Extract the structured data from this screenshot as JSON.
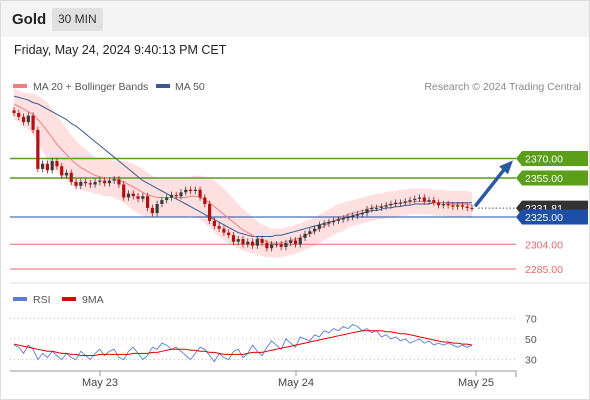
{
  "header": {
    "title": "Gold",
    "timeframe": "30 MIN",
    "datetime": "Friday, May 24, 2024 9:40:13 PM CET"
  },
  "legend": {
    "main": [
      {
        "label": "MA 20 + Bollinger Bands",
        "color": "#f08080"
      },
      {
        "label": "MA 50",
        "color": "#3a5a90"
      }
    ],
    "credit": "Research © 2024 Trading Central",
    "rsi": [
      {
        "label": "RSI",
        "color": "#5b7fd4"
      },
      {
        "label": "9MA",
        "color": "#e00000"
      }
    ]
  },
  "colors": {
    "resistance": "#5a9e1a",
    "support": "#e46a6a",
    "pivot": "#1e4fa8",
    "current": "#333333",
    "arrow": "#2a5aa0",
    "candle_up": "#3a3a3a",
    "candle_down": "#b01010"
  },
  "chart_data": {
    "type": "candlestick",
    "x_ticks": [
      "May 23",
      "May 24",
      "May 25"
    ],
    "y_range": [
      2275,
      2415
    ],
    "levels": [
      {
        "label": "2370.00",
        "value": 2370,
        "kind": "resistance"
      },
      {
        "label": "2355.00",
        "value": 2355,
        "kind": "resistance"
      },
      {
        "label": "2331.81",
        "value": 2331.81,
        "kind": "current"
      },
      {
        "label": "2325.00",
        "value": 2325,
        "kind": "pivot"
      },
      {
        "label": "2304.00",
        "value": 2304,
        "kind": "support"
      },
      {
        "label": "2285.00",
        "value": 2285,
        "kind": "support"
      }
    ],
    "closes": [
      2405,
      2402,
      2398,
      2403,
      2392,
      2362,
      2366,
      2361,
      2368,
      2364,
      2357,
      2359,
      2352,
      2349,
      2352,
      2351,
      2350,
      2352,
      2353,
      2351,
      2353,
      2354,
      2350,
      2340,
      2343,
      2341,
      2339,
      2341,
      2332,
      2328,
      2335,
      2338,
      2340,
      2342,
      2341,
      2344,
      2346,
      2345,
      2346,
      2340,
      2335,
      2322,
      2318,
      2316,
      2313,
      2311,
      2306,
      2308,
      2304,
      2306,
      2303,
      2308,
      2305,
      2301,
      2304,
      2304,
      2302,
      2305,
      2307,
      2304,
      2309,
      2312,
      2314,
      2316,
      2319,
      2320,
      2321,
      2322,
      2323,
      2324,
      2325,
      2326,
      2327,
      2328,
      2331,
      2332,
      2332,
      2333,
      2334,
      2335,
      2336,
      2336,
      2337,
      2338,
      2339,
      2340,
      2337,
      2338,
      2336,
      2334,
      2335,
      2334,
      2333,
      2334,
      2333,
      2332,
      2331.81
    ],
    "ma20": [
      2412,
      2410,
      2408,
      2406,
      2404,
      2400,
      2396,
      2391,
      2386,
      2381,
      2377,
      2373,
      2369,
      2366,
      2363,
      2361,
      2359,
      2357,
      2356,
      2355,
      2355,
      2354,
      2353,
      2352,
      2350,
      2348,
      2346,
      2344,
      2342,
      2341,
      2340,
      2340,
      2340,
      2340,
      2340,
      2340,
      2340,
      2341,
      2341,
      2340,
      2338,
      2336,
      2333,
      2330,
      2327,
      2324,
      2321,
      2318,
      2315,
      2313,
      2311,
      2309,
      2307,
      2306,
      2305,
      2305,
      2305,
      2306,
      2307,
      2308,
      2309,
      2311,
      2312,
      2314,
      2316,
      2318,
      2320,
      2322,
      2324,
      2325,
      2327,
      2328,
      2329,
      2330,
      2331,
      2332,
      2333,
      2333,
      2334,
      2335,
      2335,
      2336,
      2336,
      2337,
      2337,
      2337,
      2337,
      2337,
      2336,
      2336,
      2336,
      2335,
      2335,
      2335,
      2335,
      2335,
      2334
    ],
    "ma50": [
      2418,
      2417,
      2416,
      2415,
      2413,
      2412,
      2410,
      2408,
      2406,
      2404,
      2402,
      2400,
      2397,
      2395,
      2392,
      2389,
      2386,
      2383,
      2380,
      2377,
      2374,
      2371,
      2368,
      2365,
      2362,
      2359,
      2356,
      2353,
      2351,
      2349,
      2347,
      2345,
      2343,
      2341,
      2339,
      2337,
      2335,
      2333,
      2331,
      2329,
      2327,
      2325,
      2323,
      2321,
      2319,
      2317,
      2315,
      2313,
      2312,
      2311,
      2310,
      2310,
      2310,
      2310,
      2310,
      2311,
      2311,
      2312,
      2313,
      2314,
      2315,
      2316,
      2317,
      2318,
      2319,
      2320,
      2321,
      2322,
      2323,
      2324,
      2325,
      2326,
      2327,
      2328,
      2329,
      2330,
      2330,
      2331,
      2332,
      2332,
      2333,
      2333,
      2334,
      2334,
      2335,
      2335,
      2335,
      2335,
      2336,
      2336,
      2336,
      2336,
      2336,
      2336,
      2336,
      2336,
      2336
    ],
    "bb_width": [
      12,
      12,
      13,
      14,
      16,
      18,
      20,
      22,
      22,
      22,
      21,
      20,
      19,
      18,
      17,
      16,
      15,
      14,
      14,
      14,
      14,
      14,
      15,
      16,
      17,
      18,
      18,
      18,
      17,
      16,
      15,
      15,
      15,
      15,
      15,
      15,
      15,
      15,
      16,
      17,
      18,
      19,
      20,
      20,
      20,
      19,
      18,
      17,
      16,
      15,
      14,
      13,
      12,
      12,
      11,
      11,
      11,
      11,
      11,
      11,
      11,
      11,
      11,
      11,
      11,
      11,
      11,
      11,
      11,
      11,
      10,
      10,
      10,
      10,
      10,
      10,
      10,
      10,
      10,
      10,
      10,
      10,
      10,
      10,
      10,
      10,
      10,
      10,
      10,
      10,
      10,
      10,
      10,
      10,
      10,
      10,
      10
    ],
    "rsi": {
      "levels": [
        70,
        50,
        30
      ],
      "y_range": [
        18,
        78
      ],
      "rsi": [
        44,
        42,
        36,
        44,
        40,
        30,
        36,
        32,
        38,
        34,
        30,
        36,
        32,
        30,
        38,
        34,
        30,
        36,
        40,
        34,
        38,
        40,
        32,
        30,
        38,
        42,
        36,
        30,
        34,
        42,
        40,
        46,
        44,
        40,
        42,
        38,
        34,
        30,
        36,
        42,
        40,
        34,
        28,
        36,
        32,
        30,
        38,
        40,
        32,
        36,
        44,
        38,
        34,
        42,
        48,
        44,
        40,
        50,
        46,
        42,
        52,
        50,
        48,
        54,
        52,
        58,
        56,
        60,
        58,
        62,
        60,
        64,
        62,
        58,
        60,
        56,
        58,
        52,
        54,
        50,
        52,
        48,
        50,
        46,
        48,
        50,
        46,
        48,
        44,
        46,
        44,
        46,
        44,
        42,
        44,
        42,
        44
      ],
      "ma9": [
        45,
        44,
        43,
        42,
        41,
        40,
        39,
        38,
        38,
        37,
        36,
        36,
        35,
        35,
        34,
        34,
        34,
        34,
        35,
        35,
        35,
        35,
        35,
        35,
        35,
        36,
        36,
        36,
        36,
        37,
        37,
        38,
        39,
        40,
        40,
        40,
        40,
        39,
        39,
        38,
        38,
        37,
        37,
        36,
        35,
        35,
        35,
        35,
        35,
        36,
        37,
        37,
        37,
        38,
        39,
        40,
        41,
        42,
        43,
        44,
        45,
        46,
        47,
        48,
        49,
        50,
        51,
        52,
        53,
        54,
        55,
        56,
        57,
        58,
        58,
        58,
        58,
        58,
        57,
        57,
        56,
        55,
        55,
        54,
        53,
        52,
        51,
        50,
        49,
        48,
        47,
        47,
        46,
        46,
        45,
        45,
        44
      ]
    }
  }
}
